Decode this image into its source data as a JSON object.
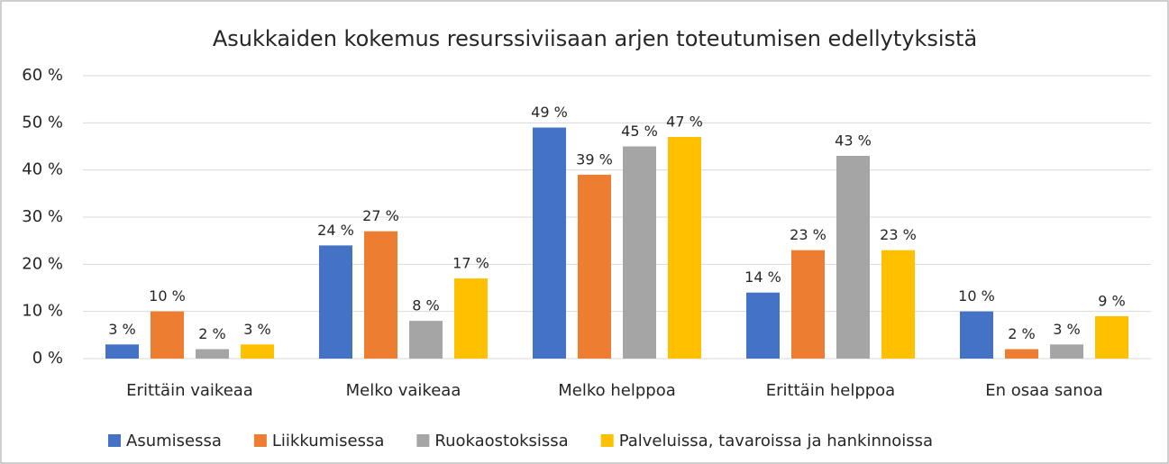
{
  "chart_data": {
    "type": "bar",
    "title": "Asukkaiden kokemus resurssiviisaan arjen toteutumisen edellytyksistä",
    "categories": [
      "Erittäin vaikeaa",
      "Melko vaikeaa",
      "Melko helppoa",
      "Erittäin helppoa",
      "En osaa sanoa"
    ],
    "series": [
      {
        "name": "Asumisessa",
        "color": "#4472c4",
        "values": [
          3,
          24,
          49,
          14,
          10
        ],
        "value_labels": [
          "3 %",
          "24 %",
          "49 %",
          "14 %",
          "10 %"
        ]
      },
      {
        "name": "Liikkumisessa",
        "color": "#ed7d31",
        "values": [
          10,
          27,
          39,
          23,
          2
        ],
        "value_labels": [
          "10 %",
          "27 %",
          "39 %",
          "23 %",
          "2 %"
        ]
      },
      {
        "name": "Ruokaostoksissa",
        "color": "#a5a5a5",
        "values": [
          2,
          8,
          45,
          43,
          3
        ],
        "value_labels": [
          "2 %",
          "8 %",
          "45 %",
          "43 %",
          "3 %"
        ]
      },
      {
        "name": "Palveluissa, tavaroissa ja hankinnoissa",
        "color": "#ffc000",
        "values": [
          3,
          17,
          47,
          23,
          9
        ],
        "value_labels": [
          "3 %",
          "17 %",
          "47 %",
          "23 %",
          "9 %"
        ]
      }
    ],
    "ylim": [
      0,
      60
    ],
    "yticks": [
      {
        "value": 0,
        "label": "0 %"
      },
      {
        "value": 10,
        "label": "10 %"
      },
      {
        "value": 20,
        "label": "20 %"
      },
      {
        "value": 30,
        "label": "30 %"
      },
      {
        "value": 40,
        "label": "40 %"
      },
      {
        "value": 50,
        "label": "50 %"
      },
      {
        "value": 60,
        "label": "60 %"
      }
    ],
    "grid": true,
    "legend": "bottom"
  }
}
